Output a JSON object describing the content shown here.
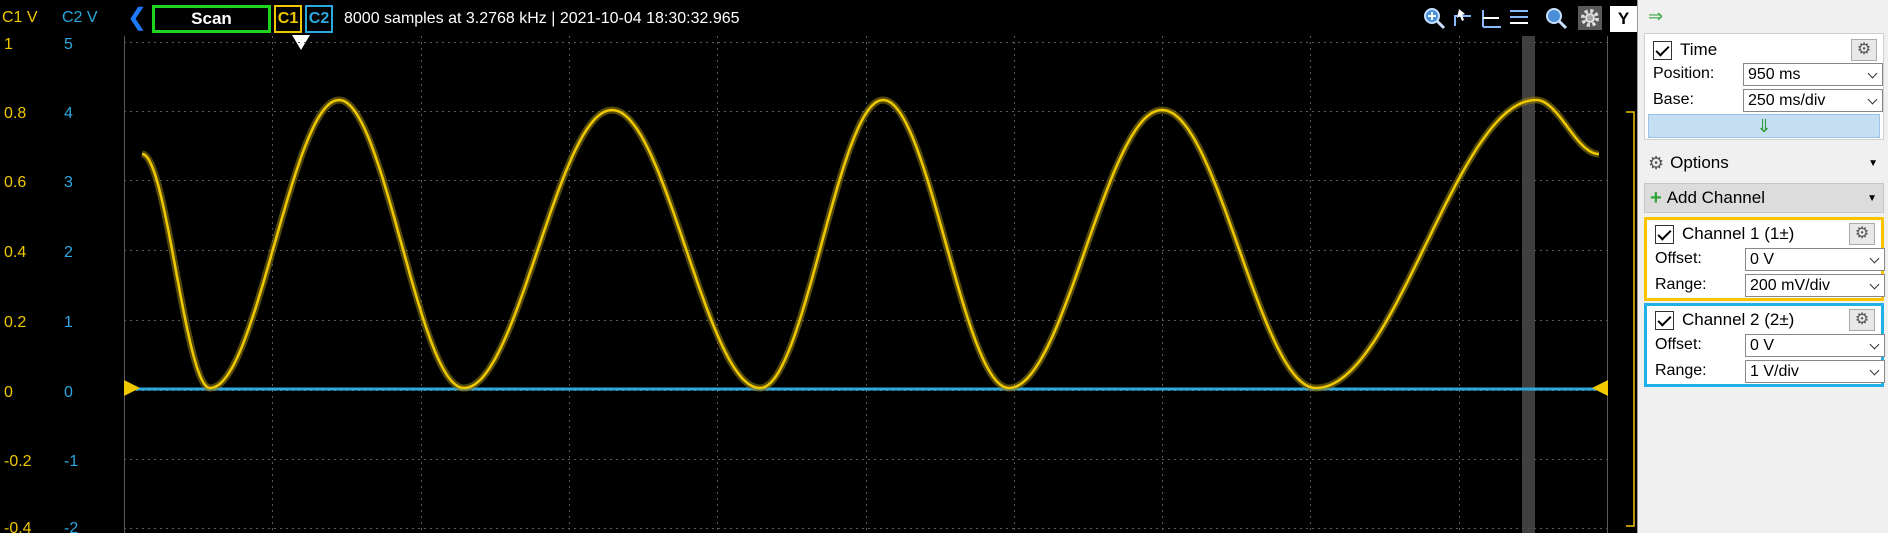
{
  "toolbar": {
    "c1_axis_label": "C1 V",
    "c2_axis_label": "C2 V",
    "scan_label": "Scan",
    "ch1_tag": "C1",
    "ch2_tag": "C2",
    "status": "8000 samples at 3.2768 kHz | 2021-10-04 18:30:32.965",
    "y_label": "Y",
    "icons": [
      "zoom-in-icon",
      "cursor-tool-icon",
      "h-cursor-icon",
      "v-cursor-icon",
      "zoom-icon",
      "gear-icon"
    ]
  },
  "y_axis": {
    "c1_ticks": [
      "1",
      "0.8",
      "0.6",
      "0.4",
      "0.2",
      "0",
      "-0.2",
      "-0.4"
    ],
    "c2_ticks": [
      "5",
      "4",
      "3",
      "2",
      "1",
      "0",
      "-1",
      "-2"
    ]
  },
  "colors": {
    "c1": "#f0c800",
    "c2": "#2ea8e0",
    "scan_border": "#1fd21f",
    "grid": "#5a5a5a"
  },
  "panel": {
    "time": {
      "title": "Time",
      "position_label": "Position:",
      "position_value": "950 ms",
      "base_label": "Base:",
      "base_value": "250 ms/div"
    },
    "options_label": "Options",
    "add_channel_label": "Add Channel",
    "channel1": {
      "title": "Channel 1 (1±)",
      "offset_label": "Offset:",
      "offset_value": "0 V",
      "range_label": "Range:",
      "range_value": "200 mV/div"
    },
    "channel2": {
      "title": "Channel 2 (2±)",
      "offset_label": "Offset:",
      "offset_value": "0 V",
      "range_label": "Range:",
      "range_value": "1 V/div"
    }
  }
}
